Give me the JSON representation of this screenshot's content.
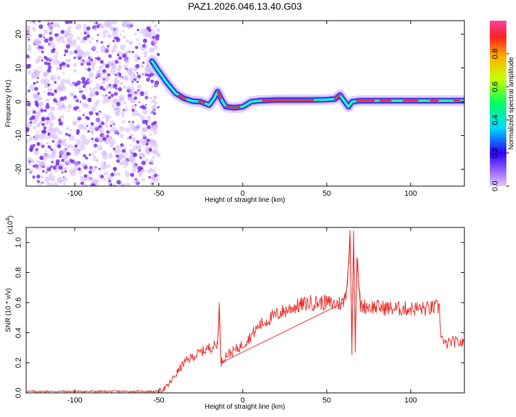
{
  "title": "PAZ1.2026.046.13.40.G03",
  "colors": {
    "snr_line": "#e8302a",
    "scatter_purple": "#7a2ef0",
    "scatter_light": "#d6bcff"
  },
  "chart_data": [
    {
      "type": "heatmap",
      "panel": "spectrogram",
      "xlabel": "Height of straight line (km)",
      "ylabel": "Frequency (Hz)",
      "xlim": [
        -129,
        132
      ],
      "ylim": [
        -25,
        24
      ],
      "xticks": [
        -100,
        -50,
        0,
        50,
        100
      ],
      "yticks": [
        -20,
        -10,
        0,
        10,
        20
      ],
      "grid": false,
      "noise_region_x": [
        -129,
        -50
      ],
      "ridge": {
        "x": [
          -54,
          -50,
          -45,
          -40,
          -35,
          -30,
          -25,
          -22,
          -20,
          -17,
          -15,
          -12,
          -10,
          -5,
          0,
          5,
          10,
          20,
          30,
          40,
          50,
          55,
          58,
          60,
          63,
          65,
          70,
          80,
          90,
          100,
          110,
          120,
          132
        ],
        "freq": [
          12,
          9,
          5.5,
          2.5,
          1,
          0.2,
          0,
          -0.6,
          -1,
          1,
          3,
          0,
          -1.5,
          -1.8,
          -1.5,
          0,
          0.3,
          0.5,
          0.5,
          0.5,
          0.6,
          0.8,
          2,
          0.5,
          -1.5,
          0,
          0.3,
          0.3,
          0.3,
          0.3,
          0.3,
          0.3,
          0.3
        ]
      },
      "colorbar": {
        "label": "Normalized spectral amplitude",
        "range": [
          0,
          1
        ],
        "ticks": [
          0.0,
          0.2,
          0.4,
          0.6,
          0.8
        ]
      }
    },
    {
      "type": "line",
      "panel": "snr",
      "xlabel": "Height of straight line (km)",
      "ylabel": "SNR (10 * v/v)",
      "yscale_label": "(x10",
      "yscale_exp": "4",
      "yscale_close": ")",
      "xlim": [
        -129,
        132
      ],
      "ylim": [
        0,
        1.1
      ],
      "xticks": [
        -100,
        -50,
        0,
        50,
        100
      ],
      "yticks": [
        0.0,
        0.2,
        0.4,
        0.6,
        0.8,
        1.0
      ],
      "grid": false,
      "series": [
        {
          "x": [
            -129,
            -100,
            -60,
            -50,
            -45,
            -40,
            -35,
            -30,
            -25,
            -20,
            -15,
            -14,
            -13,
            -10,
            -5,
            0,
            5,
            10,
            20,
            30,
            40,
            50,
            55,
            60,
            62,
            64,
            65,
            66,
            67,
            68,
            70,
            80,
            90,
            100,
            110,
            117,
            118,
            120,
            125,
            132
          ],
          "y": [
            0.01,
            0.01,
            0.01,
            0.01,
            0.04,
            0.12,
            0.2,
            0.24,
            0.27,
            0.3,
            0.32,
            0.6,
            0.2,
            0.25,
            0.28,
            0.32,
            0.38,
            0.45,
            0.52,
            0.57,
            0.6,
            0.6,
            0.59,
            0.6,
            0.7,
            1.05,
            0.25,
            1.08,
            0.3,
            0.9,
            0.58,
            0.57,
            0.56,
            0.56,
            0.56,
            0.57,
            0.4,
            0.32,
            0.34,
            0.33
          ]
        }
      ]
    }
  ]
}
